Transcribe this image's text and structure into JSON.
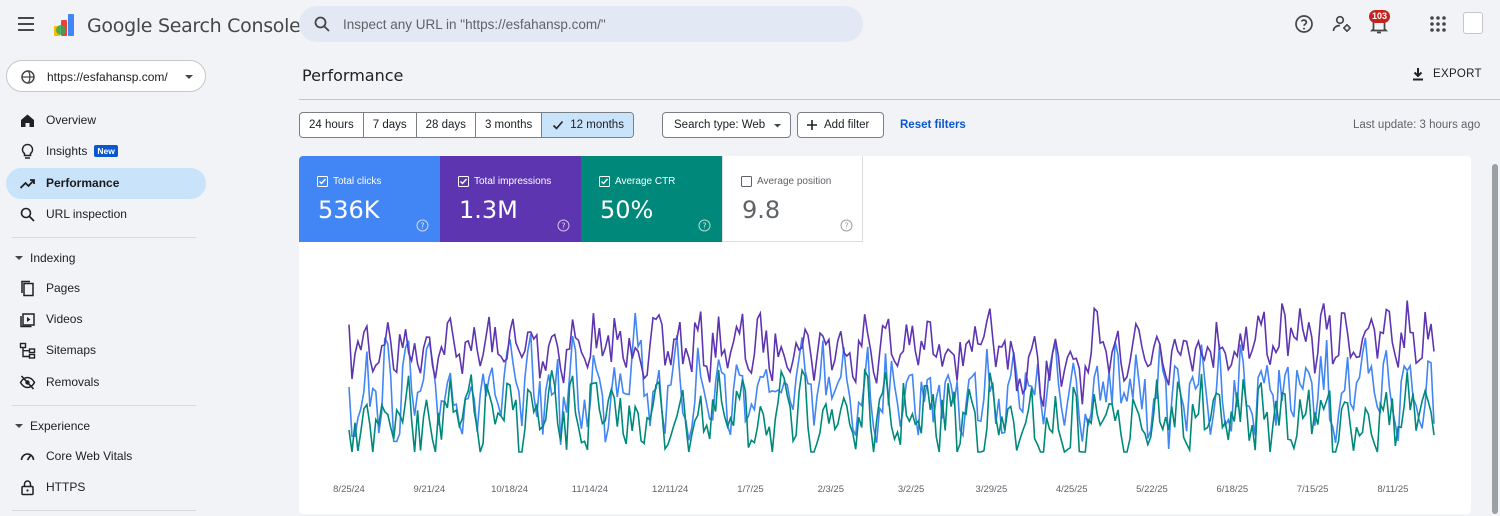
{
  "header": {
    "app_title": "Google Search Console",
    "search_placeholder": "Inspect any URL in \"https://esfahansp.com/\"",
    "notification_count": "103",
    "icons": [
      "menu-icon",
      "help-icon",
      "manage-users-icon",
      "notifications-icon",
      "apps-icon",
      "avatar"
    ]
  },
  "sidebar": {
    "property": "https://esfahansp.com/",
    "items_top": [
      {
        "label": "Overview",
        "icon": "home-icon"
      },
      {
        "label": "Insights",
        "icon": "lightbulb-icon",
        "badge": "New"
      },
      {
        "label": "Performance",
        "icon": "trending-icon",
        "active": true
      },
      {
        "label": "URL inspection",
        "icon": "search-icon"
      }
    ],
    "indexing": {
      "label": "Indexing",
      "items": [
        {
          "label": "Pages",
          "icon": "pages-icon"
        },
        {
          "label": "Videos",
          "icon": "videos-icon"
        },
        {
          "label": "Sitemaps",
          "icon": "sitemaps-icon"
        },
        {
          "label": "Removals",
          "icon": "removals-icon"
        }
      ]
    },
    "experience": {
      "label": "Experience",
      "items": [
        {
          "label": "Core Web Vitals",
          "icon": "core-web-vitals-icon"
        },
        {
          "label": "HTTPS",
          "icon": "lock-icon"
        }
      ]
    }
  },
  "main": {
    "title": "Performance",
    "export_label": "EXPORT",
    "ranges": [
      "24 hours",
      "7 days",
      "28 days",
      "3 months",
      "12 months"
    ],
    "selected_range": "12 months",
    "search_type": "Search type: Web",
    "add_filter": "Add filter",
    "reset_filters": "Reset filters",
    "last_update": "Last update: 3 hours ago",
    "metrics": [
      {
        "label": "Total clicks",
        "value": "536K",
        "checked": true,
        "color": "#4285f4"
      },
      {
        "label": "Total impressions",
        "value": "1.3M",
        "checked": true,
        "color": "#5e35b1"
      },
      {
        "label": "Average CTR",
        "value": "50%",
        "checked": true,
        "color": "#00897b"
      },
      {
        "label": "Average position",
        "value": "9.8",
        "checked": false,
        "color": "#ffffff"
      }
    ]
  },
  "chart_data": {
    "type": "line",
    "x_tick_labels": [
      "8/25/24",
      "9/21/24",
      "10/18/24",
      "11/14/24",
      "12/11/24",
      "1/7/25",
      "2/3/25",
      "3/2/25",
      "3/29/25",
      "4/25/25",
      "5/22/25",
      "6/18/25",
      "7/15/25",
      "8/11/25"
    ],
    "grid": false,
    "legend": "none",
    "series": [
      {
        "name": "Total clicks",
        "color": "#4285f4"
      },
      {
        "name": "Total impressions",
        "color": "#5e35b1"
      },
      {
        "name": "Average CTR",
        "color": "#00897b"
      }
    ]
  }
}
